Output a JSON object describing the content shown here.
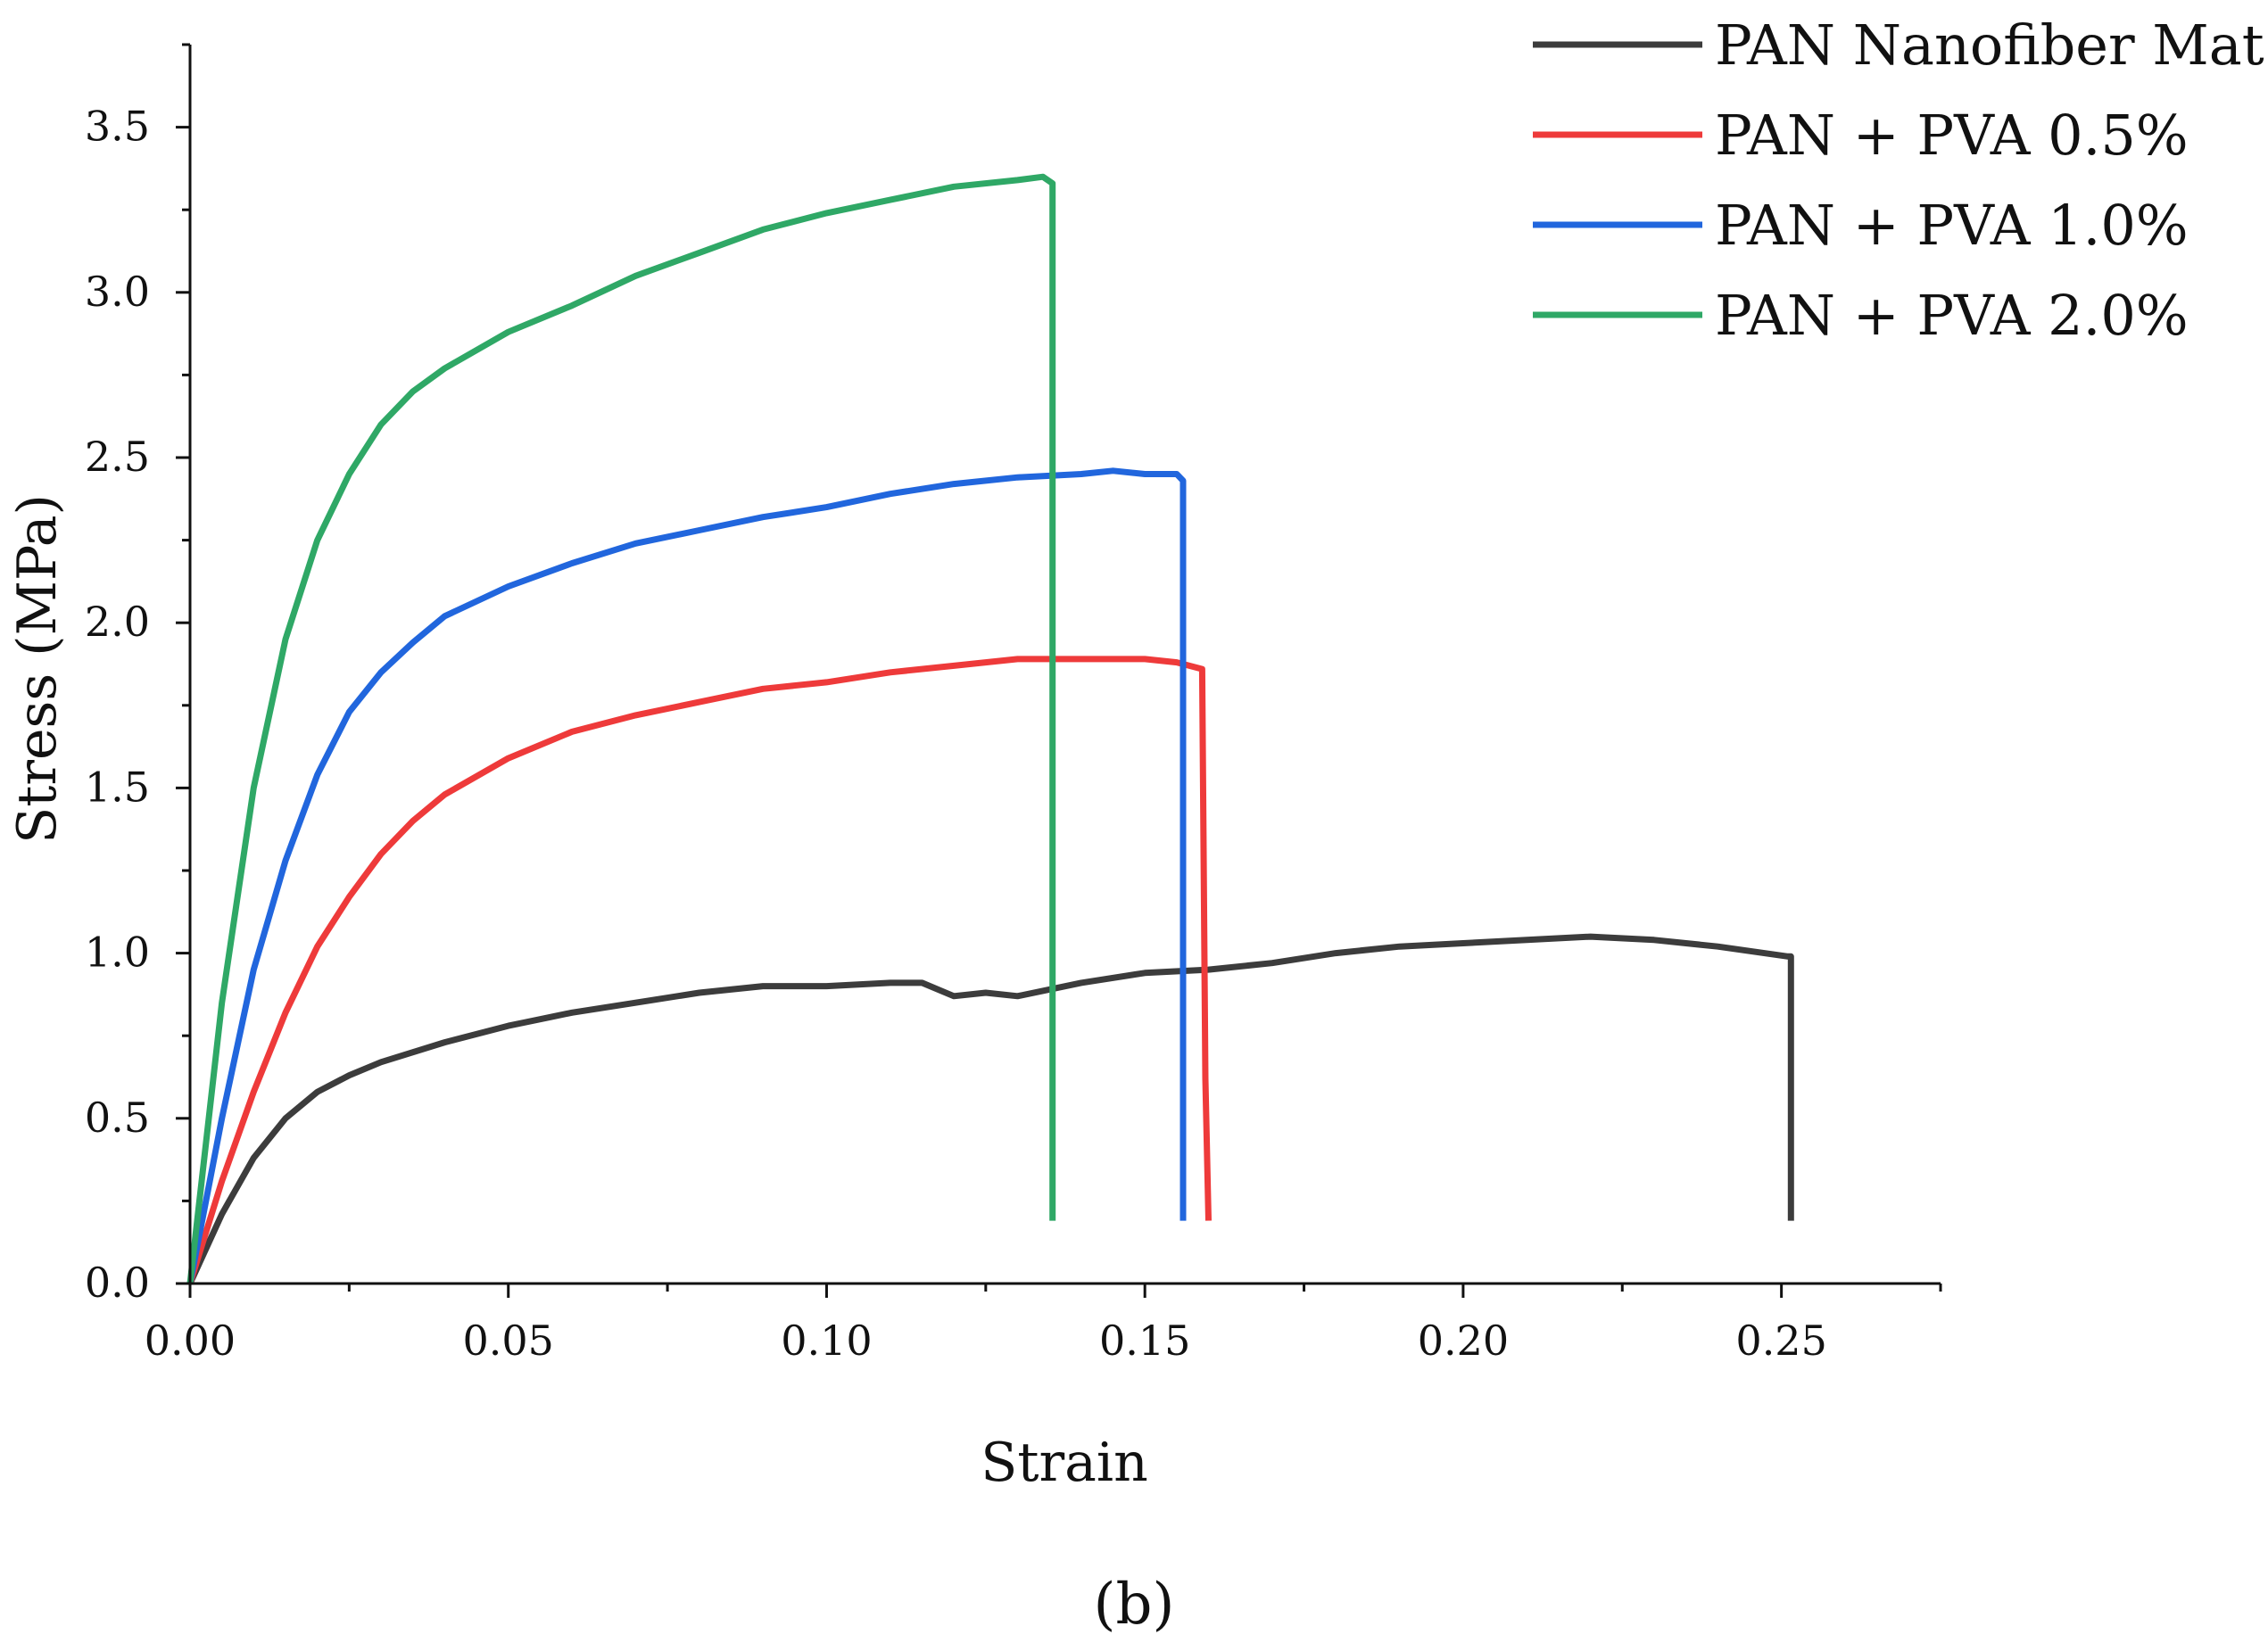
{
  "chart_data": {
    "type": "line",
    "title": "",
    "xlabel": "Strain",
    "ylabel": "Stress (MPa)",
    "panel_label": "(b)",
    "xlim": [
      0,
      0.275
    ],
    "ylim": [
      0,
      3.75
    ],
    "xticks": [
      0.0,
      0.05,
      0.1,
      0.15,
      0.2,
      0.25
    ],
    "xtick_labels": [
      "0.00",
      "0.05",
      "0.10",
      "0.15",
      "0.20",
      "0.25"
    ],
    "yticks": [
      0.0,
      0.5,
      1.0,
      1.5,
      2.0,
      2.5,
      3.0,
      3.5
    ],
    "ytick_labels": [
      "0.0",
      "0.5",
      "1.0",
      "1.5",
      "2.0",
      "2.5",
      "3.0",
      "3.5"
    ],
    "grid": false,
    "legend_position": "top-right",
    "series": [
      {
        "name": "PAN Nanofiber Mat",
        "color": "#3c3c3c",
        "x": [
          0,
          0.005,
          0.01,
          0.015,
          0.02,
          0.025,
          0.03,
          0.04,
          0.05,
          0.06,
          0.07,
          0.08,
          0.09,
          0.1,
          0.11,
          0.115,
          0.12,
          0.125,
          0.13,
          0.14,
          0.15,
          0.16,
          0.17,
          0.18,
          0.19,
          0.2,
          0.21,
          0.22,
          0.23,
          0.24,
          0.251,
          0.2515,
          0.2515
        ],
        "y": [
          0,
          0.21,
          0.38,
          0.5,
          0.58,
          0.63,
          0.67,
          0.73,
          0.78,
          0.82,
          0.85,
          0.88,
          0.9,
          0.9,
          0.91,
          0.91,
          0.87,
          0.88,
          0.87,
          0.91,
          0.94,
          0.95,
          0.97,
          1.0,
          1.02,
          1.03,
          1.04,
          1.05,
          1.04,
          1.02,
          0.99,
          0.99,
          0.19
        ]
      },
      {
        "name": "PAN + PVA 0.5%",
        "color": "#ee3a3a",
        "x": [
          0,
          0.005,
          0.01,
          0.015,
          0.02,
          0.025,
          0.03,
          0.035,
          0.04,
          0.05,
          0.06,
          0.07,
          0.08,
          0.09,
          0.1,
          0.11,
          0.12,
          0.13,
          0.14,
          0.15,
          0.155,
          0.159,
          0.1595,
          0.16
        ],
        "y": [
          0,
          0.31,
          0.58,
          0.82,
          1.02,
          1.17,
          1.3,
          1.4,
          1.48,
          1.59,
          1.67,
          1.72,
          1.76,
          1.8,
          1.82,
          1.85,
          1.87,
          1.89,
          1.89,
          1.89,
          1.88,
          1.86,
          0.62,
          0.19
        ]
      },
      {
        "name": "PAN + PVA 1.0%",
        "color": "#2166dd",
        "x": [
          0,
          0.005,
          0.01,
          0.015,
          0.02,
          0.025,
          0.03,
          0.035,
          0.04,
          0.05,
          0.06,
          0.07,
          0.08,
          0.09,
          0.1,
          0.11,
          0.12,
          0.13,
          0.14,
          0.145,
          0.15,
          0.155,
          0.156,
          0.156
        ],
        "y": [
          0,
          0.5,
          0.95,
          1.28,
          1.54,
          1.73,
          1.85,
          1.94,
          2.02,
          2.11,
          2.18,
          2.24,
          2.28,
          2.32,
          2.35,
          2.39,
          2.42,
          2.44,
          2.45,
          2.46,
          2.45,
          2.45,
          2.43,
          0.19
        ]
      },
      {
        "name": "PAN + PVA 2.0%",
        "color": "#2fa866",
        "x": [
          0,
          0.005,
          0.01,
          0.015,
          0.02,
          0.025,
          0.03,
          0.035,
          0.04,
          0.05,
          0.06,
          0.07,
          0.08,
          0.09,
          0.1,
          0.11,
          0.12,
          0.13,
          0.134,
          0.1355,
          0.1355
        ],
        "y": [
          0,
          0.85,
          1.5,
          1.95,
          2.25,
          2.45,
          2.6,
          2.7,
          2.77,
          2.88,
          2.96,
          3.05,
          3.12,
          3.19,
          3.24,
          3.28,
          3.32,
          3.34,
          3.35,
          3.33,
          0.19
        ]
      }
    ]
  }
}
